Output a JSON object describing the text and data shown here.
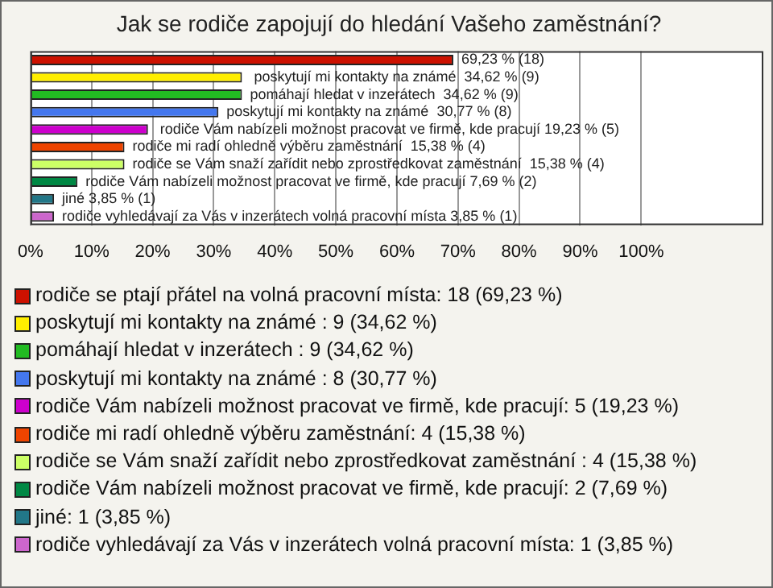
{
  "chart_data": {
    "type": "bar",
    "orientation": "horizontal",
    "title": "Jak se rodiče zapojují do hledání Vašeho zaměstnání?",
    "categories": [
      null,
      null,
      null,
      null,
      null,
      null,
      null,
      null,
      null,
      null
    ],
    "xlim": [
      0,
      120
    ],
    "xticks": [
      {
        "value": 0,
        "label": "0%"
      },
      {
        "value": 10,
        "label": "10%"
      },
      {
        "value": 20,
        "label": "20%"
      },
      {
        "value": 30,
        "label": "30%"
      },
      {
        "value": 40,
        "label": "40%"
      },
      {
        "value": 50,
        "label": "50%"
      },
      {
        "value": 60,
        "label": "60%"
      },
      {
        "value": 70,
        "label": "70%"
      },
      {
        "value": 80,
        "label": "80%"
      },
      {
        "value": 90,
        "label": "90%"
      },
      {
        "value": 100,
        "label": "100%"
      }
    ],
    "grid": "x",
    "tick_labels": "x",
    "legend": "bottom",
    "series": [
      {
        "name": "rodiče se ptají přátel na volná pracovní místa: 18 (69,23 %)",
        "color": "#cc1100",
        "values": [
          69.23,
          null,
          null,
          null,
          null,
          null,
          null,
          null,
          null,
          null
        ],
        "value_labels": [
          "69,23 % (18)",
          null,
          null,
          null,
          null,
          null,
          null,
          null,
          null,
          null
        ]
      },
      {
        "name": " poskytují mi kontakty na známé : 9 (34,62 %)",
        "color": "#ffee00",
        "values": [
          null,
          34.62,
          null,
          null,
          null,
          null,
          null,
          null,
          null,
          null
        ],
        "value_labels": [
          null,
          " poskytují mi kontakty na známé  34,62 % (9)",
          null,
          null,
          null,
          null,
          null,
          null,
          null,
          null
        ]
      },
      {
        "name": "pomáhají hledat v inzerátech : 9 (34,62 %)",
        "color": "#22bb22",
        "values": [
          null,
          null,
          34.62,
          null,
          null,
          null,
          null,
          null,
          null,
          null
        ],
        "value_labels": [
          null,
          null,
          "pomáhají hledat v inzerátech  34,62 % (9)",
          null,
          null,
          null,
          null,
          null,
          null,
          null
        ]
      },
      {
        "name": "poskytují mi kontakty na známé : 8 (30,77 %)",
        "color": "#4477ee",
        "values": [
          null,
          null,
          null,
          30.77,
          null,
          null,
          null,
          null,
          null,
          null
        ],
        "value_labels": [
          null,
          null,
          null,
          "poskytují mi kontakty na známé  30,77 % (8)",
          null,
          null,
          null,
          null,
          null,
          null
        ]
      },
      {
        "name": " rodiče Vám nabízeli možnost pracovat ve firmě, kde pracují: 5 (19,23 %)",
        "color": "#cc00cc",
        "values": [
          null,
          null,
          null,
          null,
          19.23,
          null,
          null,
          null,
          null,
          null
        ],
        "value_labels": [
          null,
          null,
          null,
          null,
          " rodiče Vám nabízeli možnost pracovat ve firmě, kde pracují 19,23 % (5)",
          null,
          null,
          null,
          null,
          null
        ]
      },
      {
        "name": "rodiče mi radí ohledně výběru zaměstnání: 4 (15,38 %)",
        "color": "#ee4400",
        "values": [
          null,
          null,
          null,
          null,
          null,
          15.38,
          null,
          null,
          null,
          null
        ],
        "value_labels": [
          null,
          null,
          null,
          null,
          null,
          "rodiče mi radí ohledně výběru zaměstnání  15,38 % (4)",
          null,
          null,
          null,
          null
        ]
      },
      {
        "name": "rodiče se Vám snaží zařídit nebo zprostředkovat zaměstnání : 4 (15,38 %)",
        "color": "#ccff66",
        "values": [
          null,
          null,
          null,
          null,
          null,
          null,
          15.38,
          null,
          null,
          null
        ],
        "value_labels": [
          null,
          null,
          null,
          null,
          null,
          null,
          "rodiče se Vám snaží zařídit nebo zprostředkovat zaměstnání  15,38 % (4)",
          null,
          null,
          null
        ]
      },
      {
        "name": "rodiče Vám nabízeli možnost pracovat ve firmě, kde pracují: 2 (7,69 %)",
        "color": "#008844",
        "values": [
          null,
          null,
          null,
          null,
          null,
          null,
          null,
          7.69,
          null,
          null
        ],
        "value_labels": [
          null,
          null,
          null,
          null,
          null,
          null,
          null,
          "rodiče Vám nabízeli možnost pracovat ve firmě, kde pracují 7,69 % (2)",
          null,
          null
        ]
      },
      {
        "name": "jiné: 1 (3,85 %)",
        "color": "#227788",
        "values": [
          null,
          null,
          null,
          null,
          null,
          null,
          null,
          null,
          3.85,
          null
        ],
        "value_labels": [
          null,
          null,
          null,
          null,
          null,
          null,
          null,
          null,
          "jiné 3,85 % (1)",
          null
        ]
      },
      {
        "name": "rodiče vyhledávají za Vás v inzerátech volná pracovní místa: 1 (3,85 %)",
        "color": "#cc66cc",
        "values": [
          null,
          null,
          null,
          null,
          null,
          null,
          null,
          null,
          null,
          3.85
        ],
        "value_labels": [
          null,
          null,
          null,
          null,
          null,
          null,
          null,
          null,
          null,
          "rodiče vyhledávají za Vás v inzerátech volná pracovní místa 3,85 % (1)"
        ]
      }
    ]
  }
}
